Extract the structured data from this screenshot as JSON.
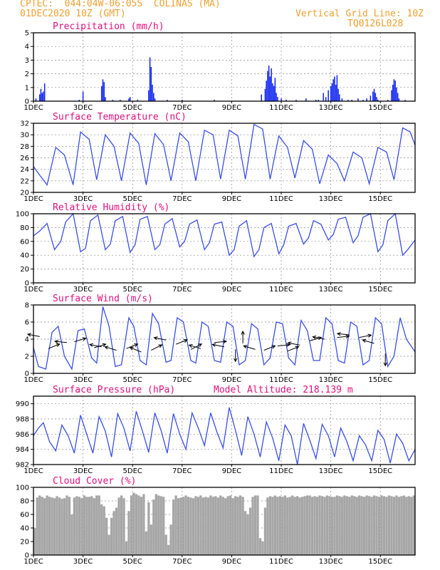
{
  "header": {
    "source": "CPTEC:",
    "coords": "044:04W-06:05S",
    "location": "COLINAS (MA)",
    "run": "01DEC2020 10Z (GMT)",
    "grid_note": "Vertical Grid Line: 10Z",
    "code": "TQ0126L028",
    "altitude_label": "Model Altitude: 218.139 m"
  },
  "x_axis": {
    "start_day": 1,
    "end_day": 16.4,
    "ticks": [
      "1DEC",
      "3DEC",
      "5DEC",
      "7DEC",
      "9DEC",
      "11DEC",
      "13DEC",
      "15DEC"
    ],
    "tick_days": [
      1,
      3,
      5,
      7,
      9,
      11,
      13,
      15
    ]
  },
  "chart_data": [
    {
      "type": "bar",
      "title": "Precipitation (mm/h)",
      "ylim": [
        0,
        5
      ],
      "yticks": [
        0,
        1,
        2,
        3,
        4,
        5
      ],
      "grid": true,
      "x": [
        1.1,
        1.25,
        1.3,
        1.35,
        1.4,
        1.45,
        2.85,
        3.0,
        3.75,
        3.8,
        3.85,
        3.9,
        4.2,
        4.5,
        4.85,
        4.9,
        5.2,
        5.65,
        5.7,
        5.75,
        5.8,
        5.85,
        5.9,
        6.4,
        7.0,
        8.3,
        10.2,
        10.35,
        10.4,
        10.45,
        10.5,
        10.55,
        10.6,
        10.65,
        10.7,
        10.75,
        10.8,
        10.85,
        11.0,
        11.2,
        11.6,
        12.0,
        12.4,
        12.5,
        12.7,
        12.8,
        12.9,
        13.0,
        13.05,
        13.1,
        13.15,
        13.2,
        13.25,
        13.3,
        13.35,
        13.45,
        13.7,
        13.85,
        14.1,
        14.3,
        14.45,
        14.6,
        14.7,
        14.75,
        14.8,
        14.85,
        14.9,
        15.3,
        15.45,
        15.5,
        15.55,
        15.6,
        15.65,
        15.7,
        15.75,
        16.0
      ],
      "values": [
        0.2,
        0.5,
        0.9,
        0.6,
        0.7,
        1.3,
        0.1,
        0.7,
        1.1,
        1.6,
        1.4,
        0.3,
        0.1,
        0.1,
        0.2,
        0.3,
        0.1,
        0.8,
        3.2,
        2.5,
        1.2,
        0.6,
        0.2,
        0.1,
        0.1,
        0.1,
        0.5,
        0.9,
        1.5,
        2.2,
        2.6,
        1.8,
        2.4,
        1.3,
        1.1,
        1.7,
        0.6,
        0.3,
        0.2,
        0.1,
        0.1,
        0.2,
        0.1,
        0.1,
        0.6,
        0.3,
        0.8,
        1.1,
        1.3,
        1.6,
        1.8,
        1.2,
        1.9,
        0.9,
        0.5,
        0.2,
        0.1,
        0.1,
        0.2,
        0.1,
        0.2,
        0.4,
        0.7,
        0.9,
        0.6,
        0.3,
        0.1,
        0.1,
        0.8,
        1.2,
        1.6,
        1.5,
        1.0,
        0.6,
        0.2,
        0.1
      ]
    },
    {
      "type": "line",
      "title": "Surface Temperature (nC)",
      "ylim": [
        20,
        32
      ],
      "yticks": [
        20,
        22,
        24,
        26,
        28,
        30,
        32
      ],
      "grid": true,
      "x": [
        1.0,
        1.25,
        1.55,
        1.9,
        2.25,
        2.6,
        2.9,
        3.25,
        3.55,
        3.9,
        4.25,
        4.55,
        4.9,
        5.25,
        5.55,
        5.9,
        6.25,
        6.55,
        6.9,
        7.25,
        7.55,
        7.9,
        8.25,
        8.55,
        8.9,
        9.25,
        9.55,
        9.9,
        10.25,
        10.55,
        10.9,
        11.25,
        11.55,
        11.9,
        12.25,
        12.55,
        12.9,
        13.25,
        13.55,
        13.9,
        14.25,
        14.55,
        14.9,
        15.25,
        15.55,
        15.9,
        16.2,
        16.4
      ],
      "values": [
        24.5,
        23.0,
        21.3,
        27.8,
        26.5,
        21.3,
        30.5,
        29.2,
        22.2,
        30.0,
        28.0,
        22.0,
        30.3,
        28.5,
        21.3,
        30.2,
        28.3,
        22.0,
        30.3,
        28.8,
        22.0,
        30.8,
        30.0,
        22.3,
        30.8,
        29.8,
        22.3,
        31.8,
        31.0,
        22.3,
        29.8,
        27.8,
        22.5,
        29.0,
        27.5,
        21.5,
        26.5,
        25.0,
        22.0,
        27.0,
        26.0,
        21.5,
        27.8,
        27.0,
        22.2,
        31.2,
        30.5,
        28.2
      ]
    },
    {
      "type": "line",
      "title": "Relative Humidity (%)",
      "ylim": [
        0,
        100
      ],
      "yticks": [
        0,
        20,
        40,
        60,
        80,
        100
      ],
      "grid": true,
      "x": [
        1.0,
        1.25,
        1.55,
        1.85,
        2.1,
        2.3,
        2.6,
        2.9,
        3.1,
        3.3,
        3.6,
        3.9,
        4.1,
        4.3,
        4.6,
        4.9,
        5.1,
        5.3,
        5.6,
        5.9,
        6.1,
        6.3,
        6.6,
        6.9,
        7.1,
        7.3,
        7.6,
        7.9,
        8.1,
        8.3,
        8.6,
        8.9,
        9.1,
        9.3,
        9.6,
        9.9,
        10.1,
        10.3,
        10.6,
        10.9,
        11.1,
        11.3,
        11.6,
        11.9,
        12.1,
        12.3,
        12.6,
        12.9,
        13.1,
        13.3,
        13.6,
        13.9,
        14.1,
        14.3,
        14.6,
        14.9,
        15.1,
        15.3,
        15.6,
        15.9,
        16.1,
        16.4
      ],
      "values": [
        68,
        75,
        86,
        48,
        60,
        88,
        100,
        45,
        50,
        90,
        98,
        48,
        56,
        90,
        96,
        44,
        55,
        92,
        96,
        48,
        55,
        85,
        93,
        52,
        60,
        85,
        91,
        48,
        58,
        85,
        88,
        40,
        48,
        82,
        90,
        38,
        48,
        80,
        86,
        42,
        55,
        82,
        86,
        56,
        65,
        90,
        85,
        62,
        70,
        92,
        95,
        58,
        68,
        95,
        100,
        45,
        55,
        90,
        100,
        40,
        48,
        62
      ]
    },
    {
      "type": "line",
      "title": "Surface Wind (m/s)",
      "ylim": [
        0,
        8
      ],
      "yticks": [
        0,
        2,
        4,
        6,
        8
      ],
      "grid": true,
      "x": [
        1.0,
        1.2,
        1.5,
        1.75,
        2.0,
        2.25,
        2.55,
        2.8,
        3.05,
        3.35,
        3.55,
        3.8,
        4.05,
        4.3,
        4.55,
        4.85,
        5.05,
        5.3,
        5.55,
        5.8,
        6.05,
        6.35,
        6.55,
        6.8,
        7.05,
        7.35,
        7.55,
        7.8,
        8.05,
        8.3,
        8.55,
        8.8,
        9.05,
        9.3,
        9.55,
        9.8,
        10.05,
        10.3,
        10.55,
        10.8,
        11.05,
        11.3,
        11.55,
        11.8,
        12.05,
        12.3,
        12.55,
        12.8,
        13.05,
        13.3,
        13.55,
        13.8,
        14.05,
        14.3,
        14.55,
        14.8,
        15.05,
        15.3,
        15.55,
        15.8,
        16.05,
        16.4
      ],
      "values": [
        3.0,
        0.8,
        0.5,
        4.8,
        5.5,
        2.0,
        0.5,
        5.0,
        5.2,
        1.8,
        1.2,
        7.8,
        5.5,
        0.8,
        1.0,
        6.5,
        5.5,
        1.5,
        1.0,
        7.0,
        5.8,
        1.3,
        1.5,
        6.5,
        6.0,
        1.5,
        1.2,
        6.0,
        5.5,
        1.5,
        1.3,
        6.0,
        5.5,
        1.0,
        1.5,
        5.8,
        5.2,
        1.0,
        1.8,
        6.0,
        5.8,
        1.8,
        1.0,
        6.2,
        5.0,
        1.5,
        1.5,
        6.5,
        5.8,
        1.5,
        1.2,
        6.0,
        5.5,
        1.0,
        1.5,
        6.5,
        5.8,
        0.8,
        2.0,
        6.5,
        4.0,
        2.5
      ],
      "barbs": {
        "x": [
          1.25,
          1.6,
          2.35,
          2.65,
          3.45,
          3.75,
          4.35,
          4.75,
          5.35,
          5.75,
          6.35,
          6.75,
          7.35,
          7.75,
          8.3,
          8.7,
          9.15,
          9.45,
          9.95,
          10.3,
          10.85,
          11.25,
          11.75,
          12.15,
          12.75,
          13.25,
          13.75,
          14.15,
          14.75,
          15.2
        ],
        "y": [
          4.3,
          2.9,
          3.6,
          3.7,
          3.0,
          3.1,
          2.7,
          2.9,
          2.5,
          2.7,
          3.9,
          3.4,
          2.8,
          2.9,
          3.6,
          3.1,
          2.8,
          3.5,
          2.8,
          2.7,
          3.2,
          2.6,
          3.3,
          3.8,
          4.0,
          4.2,
          4.5,
          4.2,
          3.5,
          2.3
        ],
        "u": [
          -1,
          1,
          -1,
          1,
          1,
          -1,
          -1,
          1,
          -1,
          1,
          -1,
          1,
          1,
          -1,
          1,
          -1,
          0,
          0,
          -1,
          1,
          1,
          1,
          -1,
          1,
          -1,
          1,
          -1,
          1,
          -1,
          0
        ],
        "v": [
          0.2,
          0.4,
          0.1,
          0.3,
          0.3,
          0.2,
          0.3,
          0.4,
          0.4,
          0.5,
          0.2,
          0.4,
          0.5,
          0.3,
          0.1,
          0.2,
          -1,
          1,
          0.3,
          0.4,
          0.1,
          0.4,
          0.2,
          0.3,
          0.2,
          0.1,
          0.1,
          0.2,
          0.3,
          -1
        ]
      }
    },
    {
      "type": "line",
      "title": "Surface Pressure (hPa)",
      "ylim": [
        982,
        991
      ],
      "yticks": [
        982,
        984,
        986,
        988,
        990
      ],
      "grid": true,
      "x": [
        1.0,
        1.2,
        1.4,
        1.65,
        1.9,
        2.15,
        2.4,
        2.65,
        2.9,
        3.15,
        3.4,
        3.65,
        3.9,
        4.15,
        4.4,
        4.65,
        4.9,
        5.15,
        5.4,
        5.65,
        5.9,
        6.15,
        6.4,
        6.65,
        6.9,
        7.15,
        7.4,
        7.65,
        7.9,
        8.15,
        8.4,
        8.65,
        8.9,
        9.15,
        9.4,
        9.65,
        9.9,
        10.15,
        10.4,
        10.65,
        10.9,
        11.15,
        11.4,
        11.65,
        11.9,
        12.15,
        12.4,
        12.65,
        12.9,
        13.15,
        13.4,
        13.65,
        13.9,
        14.15,
        14.4,
        14.65,
        14.9,
        15.15,
        15.4,
        15.65,
        15.9,
        16.15,
        16.4
      ],
      "values": [
        985.8,
        986.8,
        987.5,
        985.0,
        983.8,
        987.2,
        985.8,
        983.5,
        988.5,
        986.0,
        983.5,
        988.3,
        986.4,
        983.0,
        988.7,
        986.8,
        983.8,
        989.0,
        986.4,
        983.6,
        988.8,
        986.5,
        983.5,
        988.7,
        986.0,
        984.0,
        988.8,
        986.8,
        984.5,
        988.8,
        986.3,
        984.2,
        989.5,
        986.5,
        983.2,
        988.3,
        986.0,
        983.0,
        987.6,
        985.5,
        982.5,
        987.2,
        985.8,
        982.0,
        987.4,
        985.2,
        982.8,
        987.3,
        985.8,
        983.0,
        986.8,
        985.0,
        982.5,
        985.8,
        984.6,
        982.5,
        986.5,
        985.3,
        982.2,
        986.0,
        984.8,
        982.5,
        984.0
      ]
    },
    {
      "type": "bar",
      "title": "Cloud Cover (%)",
      "ylim": [
        0,
        100
      ],
      "yticks": [
        0,
        20,
        40,
        60,
        80,
        100
      ],
      "grid": true,
      "x": [
        1.05,
        1.15,
        1.25,
        1.35,
        1.45,
        1.55,
        1.65,
        1.75,
        1.85,
        1.95,
        2.05,
        2.15,
        2.25,
        2.35,
        2.45,
        2.55,
        2.65,
        2.75,
        2.85,
        2.95,
        3.05,
        3.15,
        3.25,
        3.35,
        3.45,
        3.55,
        3.65,
        3.75,
        3.85,
        3.95,
        4.05,
        4.15,
        4.25,
        4.35,
        4.45,
        4.55,
        4.65,
        4.75,
        4.85,
        4.95,
        5.05,
        5.15,
        5.25,
        5.35,
        5.45,
        5.55,
        5.65,
        5.75,
        5.85,
        5.95,
        6.05,
        6.15,
        6.25,
        6.35,
        6.45,
        6.55,
        6.65,
        6.75,
        6.85,
        6.95,
        7.05,
        7.15,
        7.25,
        7.35,
        7.45,
        7.55,
        7.65,
        7.75,
        7.85,
        7.95,
        8.05,
        8.15,
        8.25,
        8.35,
        8.45,
        8.55,
        8.65,
        8.75,
        8.85,
        8.95,
        9.05,
        9.15,
        9.25,
        9.35,
        9.45,
        9.55,
        9.65,
        9.75,
        9.85,
        9.95,
        10.05,
        10.15,
        10.25,
        10.35,
        10.45,
        10.55,
        10.65,
        10.75,
        10.85,
        10.95,
        11.05,
        11.15,
        11.25,
        11.35,
        11.45,
        11.55,
        11.65,
        11.75,
        11.85,
        11.95,
        12.05,
        12.15,
        12.25,
        12.35,
        12.45,
        12.55,
        12.65,
        12.75,
        12.85,
        12.95,
        13.05,
        13.15,
        13.25,
        13.35,
        13.45,
        13.55,
        13.65,
        13.75,
        13.85,
        13.95,
        14.05,
        14.15,
        14.25,
        14.35,
        14.45,
        14.55,
        14.65,
        14.75,
        14.85,
        14.95,
        15.05,
        15.15,
        15.25,
        15.35,
        15.45,
        15.55,
        15.65,
        15.75,
        15.85,
        15.95,
        16.05,
        16.15,
        16.25,
        16.35
      ],
      "values": [
        40,
        85,
        88,
        86,
        84,
        88,
        86,
        85,
        84,
        87,
        85,
        83,
        84,
        88,
        86,
        60,
        85,
        87,
        86,
        84,
        88,
        86,
        86,
        87,
        84,
        88,
        88,
        75,
        72,
        55,
        30,
        55,
        65,
        70,
        85,
        88,
        84,
        20,
        65,
        88,
        92,
        90,
        88,
        86,
        90,
        35,
        78,
        45,
        82,
        90,
        88,
        87,
        86,
        30,
        15,
        45,
        82,
        88,
        84,
        85,
        86,
        88,
        86,
        85,
        84,
        87,
        86,
        88,
        85,
        86,
        85,
        88,
        86,
        87,
        85,
        88,
        86,
        84,
        87,
        88,
        84,
        87,
        86,
        88,
        86,
        65,
        60,
        70,
        86,
        88,
        88,
        25,
        20,
        70,
        85,
        87,
        86,
        88,
        86,
        87,
        86,
        88,
        85,
        86,
        88,
        86,
        87,
        85,
        86,
        87,
        88,
        88,
        86,
        87,
        86,
        88,
        87,
        86,
        88,
        87,
        86,
        86,
        88,
        87,
        86,
        88,
        87,
        86,
        88,
        87,
        86,
        88,
        87,
        86,
        88,
        87,
        86,
        88,
        87,
        86,
        88,
        87,
        86,
        88,
        87,
        86,
        88,
        86,
        87,
        88,
        86,
        87,
        86,
        88
      ]
    }
  ]
}
